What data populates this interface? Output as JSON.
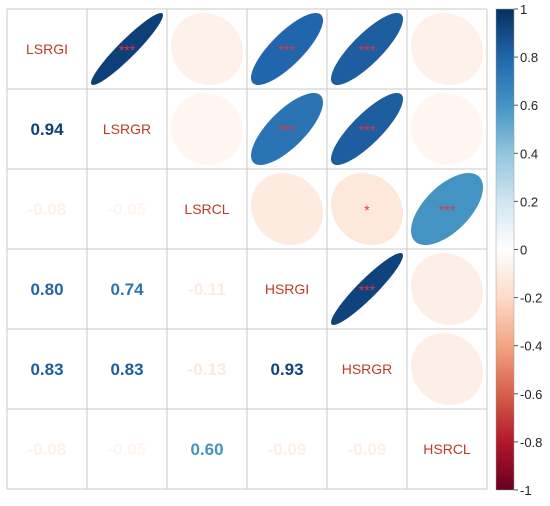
{
  "chart_data": {
    "type": "heatmap",
    "subtype": "correlation-matrix (corrplot mixed: numbers lower, ellipses upper)",
    "variables": [
      "LSRGI",
      "LSRGR",
      "LSRCL",
      "HSRGI",
      "HSRGR",
      "HSRCL"
    ],
    "matrix": [
      [
        1.0,
        0.94,
        -0.08,
        0.8,
        0.83,
        -0.08
      ],
      [
        0.94,
        1.0,
        -0.05,
        0.74,
        0.83,
        -0.05
      ],
      [
        -0.08,
        -0.05,
        1.0,
        -0.11,
        -0.13,
        0.6
      ],
      [
        0.8,
        0.74,
        -0.11,
        1.0,
        0.93,
        -0.09
      ],
      [
        0.83,
        0.83,
        -0.13,
        0.93,
        1.0,
        -0.09
      ],
      [
        -0.08,
        -0.05,
        0.6,
        -0.09,
        -0.09,
        1.0
      ]
    ],
    "lower_labels": [
      [
        "",
        "",
        "",
        "",
        "",
        ""
      ],
      [
        "0.94",
        "",
        "",
        "",
        "",
        ""
      ],
      [
        "-0.08",
        "-0.05",
        "",
        "",
        "",
        ""
      ],
      [
        "0.80",
        "0.74",
        "-0.11",
        "",
        "",
        ""
      ],
      [
        "0.83",
        "0.83",
        "-0.13",
        "0.93",
        "",
        ""
      ],
      [
        "-0.08",
        "-0.05",
        "0.60",
        "-0.09",
        "-0.09",
        ""
      ]
    ],
    "significance": [
      [
        "",
        "***",
        "",
        "***",
        "***",
        ""
      ],
      [
        "",
        "",
        "",
        "***",
        "***",
        ""
      ],
      [
        "",
        "",
        "",
        "",
        "*",
        "***"
      ],
      [
        "",
        "",
        "",
        "",
        "***",
        ""
      ],
      [
        "",
        "",
        "",
        "",
        "",
        ""
      ],
      [
        "",
        "",
        "",
        "",
        "",
        ""
      ]
    ],
    "colorbar": {
      "min": -1,
      "max": 1,
      "ticks": [
        "1",
        "0.8",
        "0.6",
        "0.4",
        "0.2",
        "0",
        "-0.2",
        "-0.4",
        "-0.6",
        "-0.8",
        "-1"
      ],
      "position": "right"
    },
    "grid": true,
    "diagonal_label_color": "#c0392b",
    "significance_color": "#e8333a"
  }
}
